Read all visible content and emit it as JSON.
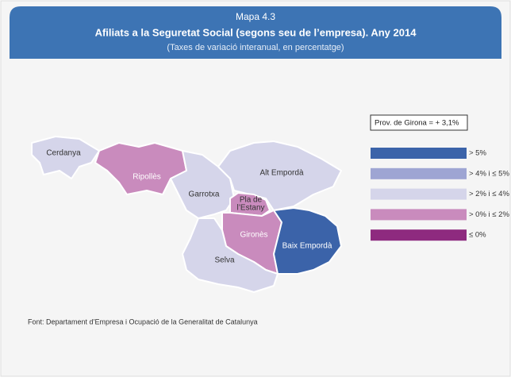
{
  "header": {
    "number": "Mapa 4.3",
    "title": "Afiliats a la Seguretat Social (segons seu de l’empresa). Any 2014",
    "subtitle": "(Taxes de variació interanual, en percentatge)"
  },
  "province_note": "Prov. de Girona = + 3,1%",
  "legend": [
    {
      "label": "> 5%",
      "color": "#3b63a9"
    },
    {
      "label": "> 4% i ≤ 5%",
      "color": "#9ea5d3"
    },
    {
      "label": "> 2% i ≤ 4%",
      "color": "#d5d5ea"
    },
    {
      "label": "> 0% i ≤ 2%",
      "color": "#c98bbd"
    },
    {
      "label": "≤ 0%",
      "color": "#8e2a7f"
    }
  ],
  "regions": [
    {
      "label": [
        "Cerdanya"
      ],
      "color": "#d5d5ea"
    },
    {
      "label": [
        "Ripollès"
      ],
      "color": "#c98bbd"
    },
    {
      "label": [
        "Garrotxa"
      ],
      "color": "#d5d5ea"
    },
    {
      "label": [
        "Alt Empordà"
      ],
      "color": "#d5d5ea"
    },
    {
      "label": [
        "Pla de",
        "l’Estany"
      ],
      "color": "#c98bbd"
    },
    {
      "label": [
        "Gironès"
      ],
      "color": "#c98bbd"
    },
    {
      "label": [
        "Baix Empordà"
      ],
      "color": "#3b63a9"
    },
    {
      "label": [
        "Selva"
      ],
      "color": "#d5d5ea"
    }
  ],
  "source": "Font: Departament d’Empresa i Ocupació de la Generalitat de Catalunya"
}
